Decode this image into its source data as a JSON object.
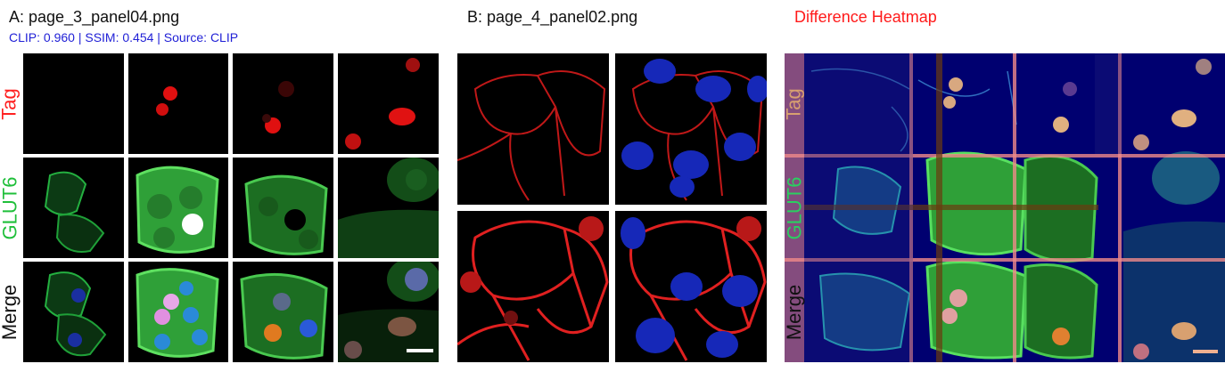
{
  "panel_a": {
    "title": "A: page_3_panel04.png",
    "metrics": "CLIP: 0.960 | SSIM: 0.454 | Source: CLIP",
    "row_labels": [
      "Tag",
      "GLUT6",
      "Merge"
    ]
  },
  "panel_b": {
    "title": "B: page_4_panel02.png"
  },
  "panel_c": {
    "title": "Difference Heatmap",
    "row_labels": [
      "Tag",
      "GLUT6",
      "Merge"
    ]
  },
  "colors": {
    "title_text": "#111111",
    "metrics_text": "#1f1fd6",
    "heatmap_title": "#ff1a1a",
    "tag_label": "#ff2020",
    "glut6_label": "#1fbf3a",
    "merge_label": "#111111",
    "heatmap_bg": "#000070",
    "heatmap_grid": "#f08a8a"
  },
  "icons": [
    "scale-bar"
  ]
}
